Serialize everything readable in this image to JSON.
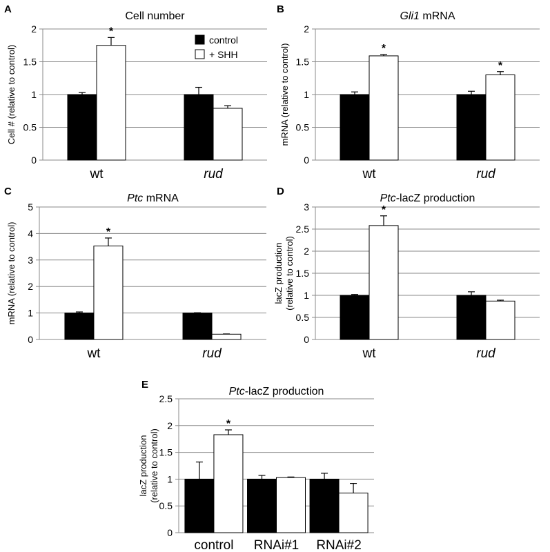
{
  "figure": {
    "legend": {
      "control": "control",
      "treated": "+ SHH"
    },
    "colors": {
      "control": "#000000",
      "treated": "#ffffff",
      "grid": "#8a8a8a",
      "axis": "#8a8a8a"
    }
  },
  "chart_data": [
    {
      "panel": "A",
      "type": "bar",
      "title": "Cell number",
      "title_italic": "",
      "title_rest": "",
      "ylabel": [
        "Cell # (relative to control)"
      ],
      "categories": [
        "wt",
        "rud"
      ],
      "categories_italic": [
        false,
        true
      ],
      "ylim": [
        0,
        2
      ],
      "yticks": [
        0,
        0.5,
        1,
        1.5,
        2
      ],
      "grid": true,
      "series": [
        {
          "name": "control",
          "values": [
            1.0,
            1.0
          ],
          "errors": [
            0.03,
            0.11
          ]
        },
        {
          "name": "+ SHH",
          "values": [
            1.75,
            0.79
          ],
          "errors": [
            0.12,
            0.04
          ]
        }
      ],
      "significance": [
        {
          "category": 0,
          "series": 1,
          "label": "*"
        }
      ]
    },
    {
      "panel": "B",
      "type": "bar",
      "title": "",
      "title_italic": "Gli1",
      "title_rest": " mRNA",
      "ylabel": [
        "mRNA (relative to control)"
      ],
      "categories": [
        "wt",
        "rud"
      ],
      "categories_italic": [
        false,
        true
      ],
      "ylim": [
        0,
        2
      ],
      "yticks": [
        0,
        0.5,
        1,
        1.5,
        2
      ],
      "grid": true,
      "series": [
        {
          "name": "control",
          "values": [
            1.0,
            1.0
          ],
          "errors": [
            0.04,
            0.05
          ]
        },
        {
          "name": "+ SHH",
          "values": [
            1.59,
            1.3
          ],
          "errors": [
            0.02,
            0.05
          ]
        }
      ],
      "significance": [
        {
          "category": 0,
          "series": 1,
          "label": "*"
        },
        {
          "category": 1,
          "series": 1,
          "label": "*"
        }
      ]
    },
    {
      "panel": "C",
      "type": "bar",
      "title": "",
      "title_italic": "Ptc",
      "title_rest": " mRNA",
      "ylabel": [
        "mRNA (relative to control)"
      ],
      "categories": [
        "wt",
        "rud"
      ],
      "categories_italic": [
        false,
        true
      ],
      "ylim": [
        0,
        5
      ],
      "yticks": [
        0,
        1,
        2,
        3,
        4,
        5
      ],
      "grid": true,
      "series": [
        {
          "name": "control",
          "values": [
            1.0,
            1.0
          ],
          "errors": [
            0.04,
            0.01
          ]
        },
        {
          "name": "+ SHH",
          "values": [
            3.53,
            0.2
          ],
          "errors": [
            0.3,
            0.01
          ]
        }
      ],
      "significance": [
        {
          "category": 0,
          "series": 1,
          "label": "*"
        }
      ]
    },
    {
      "panel": "D",
      "type": "bar",
      "title": "",
      "title_italic": "Ptc",
      "title_rest": "-lacZ production",
      "ylabel": [
        "lacZ production",
        "(relative to control)"
      ],
      "categories": [
        "wt",
        "rud"
      ],
      "categories_italic": [
        false,
        true
      ],
      "ylim": [
        0,
        3
      ],
      "yticks": [
        0,
        0.5,
        1,
        1.5,
        2,
        2.5,
        3
      ],
      "grid": true,
      "series": [
        {
          "name": "control",
          "values": [
            1.0,
            1.0
          ],
          "errors": [
            0.02,
            0.08
          ]
        },
        {
          "name": "+ SHH",
          "values": [
            2.58,
            0.87
          ],
          "errors": [
            0.22,
            0.02
          ]
        }
      ],
      "significance": [
        {
          "category": 0,
          "series": 1,
          "label": "*"
        }
      ]
    },
    {
      "panel": "E",
      "type": "bar",
      "title": "",
      "title_italic": "Ptc",
      "title_rest": "-lacZ production",
      "ylabel": [
        "lacZ production",
        "(relative to control)"
      ],
      "categories": [
        "control",
        "RNAi#1",
        "RNAi#2"
      ],
      "categories_italic": [
        false,
        false,
        false
      ],
      "ylim": [
        0,
        2.5
      ],
      "yticks": [
        0,
        0.5,
        1,
        1.5,
        2,
        2.5
      ],
      "grid": true,
      "series": [
        {
          "name": "control",
          "values": [
            1.0,
            1.0,
            1.0
          ],
          "errors": [
            0.32,
            0.07,
            0.11
          ]
        },
        {
          "name": "+ SHH",
          "values": [
            1.83,
            1.03,
            0.74
          ],
          "errors": [
            0.09,
            0.01,
            0.18
          ]
        }
      ],
      "significance": [
        {
          "category": 0,
          "series": 1,
          "label": "*"
        }
      ]
    }
  ]
}
